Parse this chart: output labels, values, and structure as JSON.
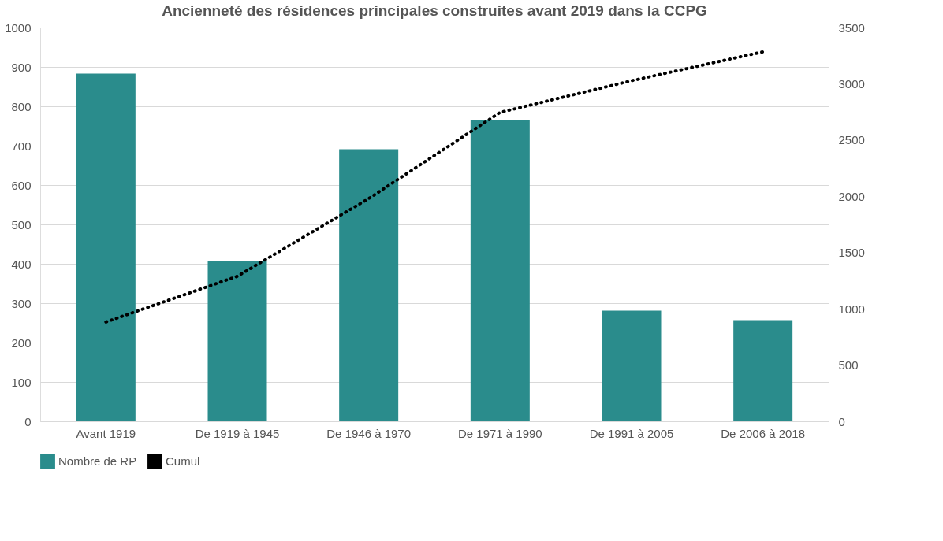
{
  "chart_data": {
    "type": "bar",
    "title": "Ancienneté des résidences principales construites avant 2019 dans  la CCPG",
    "categories": [
      "Avant 1919",
      "De 1919 à 1945",
      "De 1946 à 1970",
      "De 1971 à 1990",
      "De 1991 à 2005",
      "De 2006 à 2018"
    ],
    "series": [
      {
        "name": "Nombre de RP",
        "color": "#2a8c8c",
        "values": [
          883,
          406,
          691,
          766,
          281,
          257
        ]
      },
      {
        "name": "Cumul",
        "type": "line",
        "axis": "y2",
        "color": "#000000",
        "line_style": "dotted",
        "marker": "none",
        "values": [
          883,
          1289,
          1980,
          2746,
          3027,
          3284
        ]
      }
    ],
    "ylim": [
      0,
      1000
    ],
    "yticks": [
      0,
      100,
      200,
      300,
      400,
      500,
      600,
      700,
      800,
      900,
      1000
    ],
    "y2lim": [
      0,
      3500
    ],
    "y2ticks": [
      0,
      500,
      1000,
      1500,
      2000,
      2500,
      3000,
      3500
    ],
    "grid": "y",
    "legend": "bottom"
  }
}
